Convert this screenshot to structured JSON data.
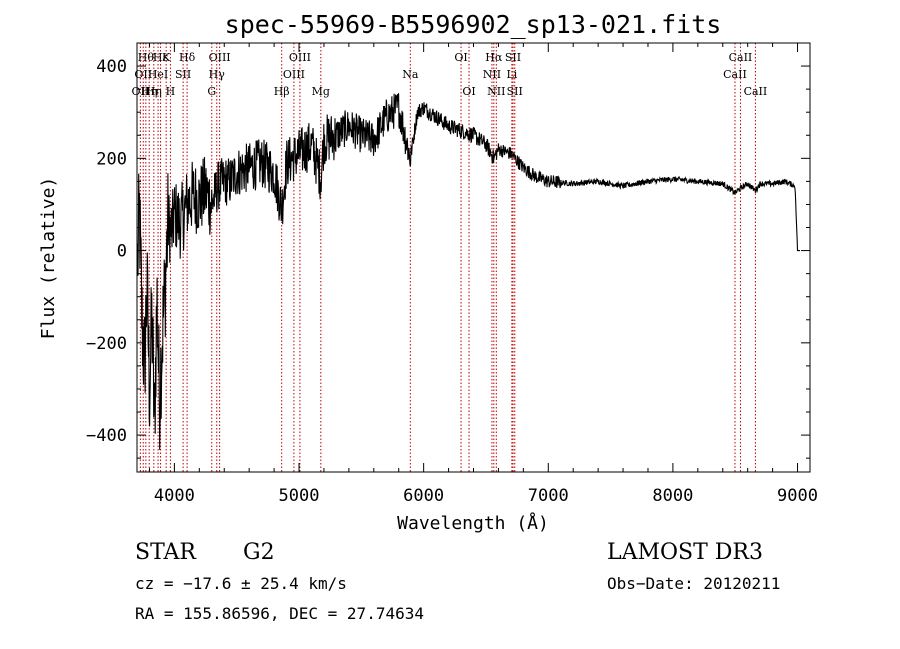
{
  "chart_data": {
    "type": "line",
    "title": "spec-55969-B5596902_sp13-021.fits",
    "xlabel": "Wavelength (Å)",
    "ylabel": "Flux (relative)",
    "xlim": [
      3700,
      9100
    ],
    "ylim": [
      -480,
      450
    ],
    "xticks": [
      {
        "value": 4000,
        "label": "4000"
      },
      {
        "value": 5000,
        "label": "5000"
      },
      {
        "value": 6000,
        "label": "6000"
      },
      {
        "value": 7000,
        "label": "7000"
      },
      {
        "value": 8000,
        "label": "8000"
      },
      {
        "value": 9000,
        "label": "9000"
      }
    ],
    "yticks": [
      {
        "value": 400,
        "label": "400"
      },
      {
        "value": 200,
        "label": "200"
      },
      {
        "value": 0,
        "label": "0"
      },
      {
        "value": -200,
        "label": "−200"
      },
      {
        "value": -400,
        "label": "−400"
      }
    ],
    "lines": [
      {
        "wl": 3727,
        "label": "OII",
        "row": 3
      },
      {
        "wl": 3750,
        "label": "OII",
        "row": 2
      },
      {
        "wl": 3771,
        "label": "Hθ",
        "row": 1
      },
      {
        "wl": 3798,
        "label": "Hη",
        "row": 3
      },
      {
        "wl": 3835,
        "label": "Hη",
        "row": 3
      },
      {
        "wl": 3869,
        "label": "HeI",
        "row": 2
      },
      {
        "wl": 3889,
        "label": "Hε",
        "row": 1
      },
      {
        "wl": 3934,
        "label": "K",
        "row": 1
      },
      {
        "wl": 3968,
        "label": "H",
        "row": 3
      },
      {
        "wl": 4070,
        "label": "SII",
        "row": 2
      },
      {
        "wl": 4102,
        "label": "Hδ",
        "row": 1
      },
      {
        "wl": 4300,
        "label": "G",
        "row": 3
      },
      {
        "wl": 4340,
        "label": "Hγ",
        "row": 2
      },
      {
        "wl": 4363,
        "label": "OIII",
        "row": 1
      },
      {
        "wl": 4861,
        "label": "Hβ",
        "row": 3
      },
      {
        "wl": 4959,
        "label": "OIII",
        "row": 2
      },
      {
        "wl": 5007,
        "label": "OIII",
        "row": 1
      },
      {
        "wl": 5175,
        "label": "Mg",
        "row": 3
      },
      {
        "wl": 5893,
        "label": "Na",
        "row": 2
      },
      {
        "wl": 6300,
        "label": "OI",
        "row": 1
      },
      {
        "wl": 6364,
        "label": "OI",
        "row": 3
      },
      {
        "wl": 6548,
        "label": "NII",
        "row": 2
      },
      {
        "wl": 6563,
        "label": "Hα",
        "row": 1
      },
      {
        "wl": 6583,
        "label": "NII",
        "row": 3
      },
      {
        "wl": 6708,
        "label": "Li",
        "row": 2
      },
      {
        "wl": 6717,
        "label": "SII",
        "row": 1
      },
      {
        "wl": 6731,
        "label": "SII",
        "row": 3
      },
      {
        "wl": 8498,
        "label": "CaII",
        "row": 2
      },
      {
        "wl": 8542,
        "label": "CaII",
        "row": 1
      },
      {
        "wl": 8662,
        "label": "CaII",
        "row": 3
      }
    ],
    "spectrum_anchors": [
      [
        3700,
        -60
      ],
      [
        3720,
        80
      ],
      [
        3740,
        -150
      ],
      [
        3760,
        -250
      ],
      [
        3780,
        -80
      ],
      [
        3800,
        -300
      ],
      [
        3820,
        -150
      ],
      [
        3840,
        -380
      ],
      [
        3860,
        -100
      ],
      [
        3880,
        -320
      ],
      [
        3900,
        -200
      ],
      [
        3920,
        -100
      ],
      [
        3950,
        60
      ],
      [
        3980,
        40
      ],
      [
        4000,
        80
      ],
      [
        4050,
        60
      ],
      [
        4100,
        100
      ],
      [
        4150,
        120
      ],
      [
        4200,
        110
      ],
      [
        4250,
        130
      ],
      [
        4300,
        100
      ],
      [
        4350,
        140
      ],
      [
        4400,
        150
      ],
      [
        4450,
        150
      ],
      [
        4500,
        170
      ],
      [
        4600,
        180
      ],
      [
        4700,
        190
      ],
      [
        4800,
        170
      ],
      [
        4861,
        90
      ],
      [
        4900,
        190
      ],
      [
        5000,
        210
      ],
      [
        5100,
        230
      ],
      [
        5175,
        160
      ],
      [
        5200,
        240
      ],
      [
        5300,
        250
      ],
      [
        5400,
        270
      ],
      [
        5500,
        250
      ],
      [
        5600,
        240
      ],
      [
        5700,
        290
      ],
      [
        5800,
        310
      ],
      [
        5893,
        200
      ],
      [
        5950,
        300
      ],
      [
        6000,
        310
      ],
      [
        6100,
        290
      ],
      [
        6200,
        270
      ],
      [
        6300,
        260
      ],
      [
        6400,
        250
      ],
      [
        6500,
        230
      ],
      [
        6563,
        200
      ],
      [
        6600,
        220
      ],
      [
        6700,
        210
      ],
      [
        6800,
        180
      ],
      [
        6900,
        160
      ],
      [
        7000,
        150
      ],
      [
        7200,
        145
      ],
      [
        7400,
        150
      ],
      [
        7600,
        140
      ],
      [
        7800,
        150
      ],
      [
        8000,
        155
      ],
      [
        8200,
        150
      ],
      [
        8400,
        145
      ],
      [
        8498,
        125
      ],
      [
        8542,
        135
      ],
      [
        8600,
        145
      ],
      [
        8662,
        130
      ],
      [
        8700,
        145
      ],
      [
        8800,
        145
      ],
      [
        8900,
        150
      ],
      [
        8980,
        140
      ],
      [
        9000,
        0
      ],
      [
        9020,
        0
      ]
    ],
    "info": {
      "object": "STAR",
      "subclass": "G2",
      "survey": "LAMOST DR3",
      "cz": "cz = −17.6 ± 25.4 km/s",
      "obsdate": "Obs−Date: 20120211",
      "radec": "RA = 155.86596, DEC =  27.74634"
    }
  }
}
